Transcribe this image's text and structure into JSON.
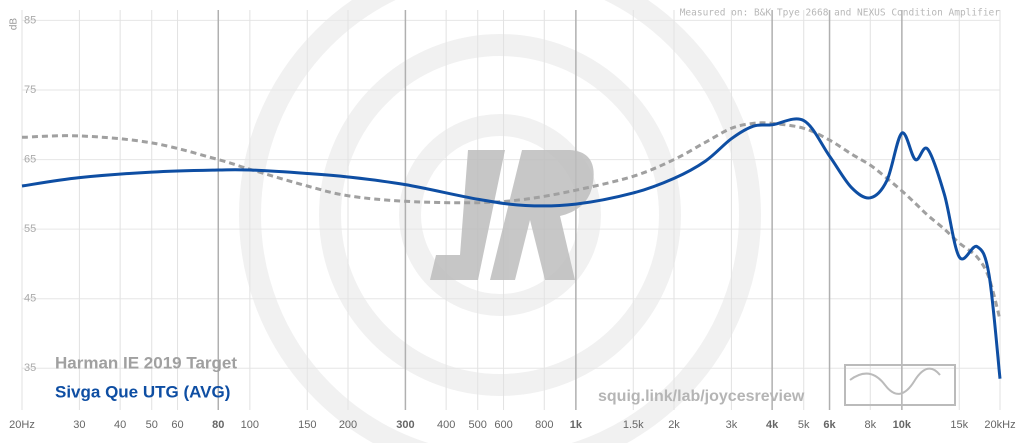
{
  "chart_data": {
    "type": "line",
    "note_text": "Measured on: B&K Tpye 2668 and NEXUS Condition Amplifier",
    "y_label": "dB",
    "watermark": "squig.link/lab/joycesreview",
    "log_x": true,
    "grid": true,
    "xlim": [
      20,
      20000
    ],
    "ylim": [
      29,
      86.5
    ],
    "xticks": [
      {
        "value": 20,
        "label": "20Hz"
      },
      30,
      40,
      50,
      60,
      80,
      100,
      150,
      200,
      300,
      400,
      500,
      600,
      800,
      {
        "value": 1000,
        "label": "1k"
      },
      {
        "value": 1500,
        "label": "1.5k"
      },
      {
        "value": 2000,
        "label": "2k"
      },
      {
        "value": 3000,
        "label": "3k"
      },
      {
        "value": 4000,
        "label": "4k"
      },
      {
        "value": 5000,
        "label": "5k"
      },
      {
        "value": 6000,
        "label": "6k"
      },
      {
        "value": 8000,
        "label": "8k"
      },
      {
        "value": 10000,
        "label": "10k"
      },
      {
        "value": 15000,
        "label": "15k"
      },
      {
        "value": 20000,
        "label": "20kHz"
      }
    ],
    "major_xticks": [
      80,
      300,
      1000,
      4000,
      6000,
      10000
    ],
    "yticks": [
      35,
      45,
      55,
      65,
      75,
      85
    ],
    "x": [
      20,
      30,
      50,
      80,
      100,
      150,
      200,
      300,
      500,
      700,
      1000,
      1500,
      2000,
      2500,
      3000,
      3500,
      4000,
      5000,
      6000,
      7000,
      8000,
      9000,
      10000,
      11000,
      12000,
      13500,
      15000,
      17000,
      18500,
      20000
    ],
    "series": [
      {
        "name": "Harman IE 2019 Target",
        "color": "#a0a0a0",
        "dashed": true,
        "values": [
          68.2,
          68.4,
          67.4,
          65,
          63.6,
          61.2,
          59.8,
          59,
          58.8,
          59.3,
          60.6,
          62.6,
          65,
          67.5,
          69.5,
          70.2,
          70.2,
          69.5,
          67.8,
          65.8,
          64.2,
          62.3,
          60.5,
          58.7,
          57,
          55,
          53,
          51,
          48,
          42
        ]
      },
      {
        "name": "Sivga Que UTG (AVG)",
        "color": "#0e4ea3",
        "dashed": false,
        "values": [
          61.2,
          62.4,
          63.2,
          63.5,
          63.5,
          63,
          62.5,
          61.4,
          59.3,
          58.4,
          58.6,
          60.2,
          62.3,
          64.8,
          68,
          69.8,
          70,
          70.6,
          65.5,
          61,
          59.5,
          62,
          68.8,
          65,
          66.5,
          60,
          51,
          52.5,
          48.5,
          33.5
        ]
      }
    ]
  }
}
